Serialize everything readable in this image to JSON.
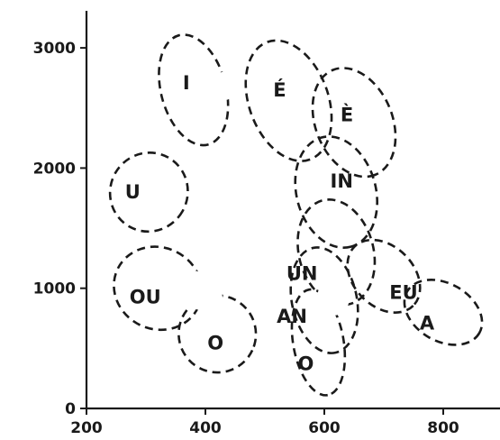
{
  "chart_data": {
    "type": "scatter",
    "title": "",
    "xlabel": "",
    "ylabel": "",
    "xlim": [
      200,
      850
    ],
    "ylim": [
      0,
      3100
    ],
    "x_ticks": [
      {
        "value": 200,
        "label": "200"
      },
      {
        "value": 400,
        "label": "400"
      },
      {
        "value": 600,
        "label": "600"
      },
      {
        "value": 800,
        "label": "800"
      }
    ],
    "y_ticks": [
      {
        "value": 0,
        "label": "0"
      },
      {
        "value": 1000,
        "label": "1000"
      },
      {
        "value": 2000,
        "label": "2000"
      },
      {
        "value": 3000,
        "label": "3000"
      }
    ],
    "vowel_regions": [
      {
        "label": "I",
        "cx": 380,
        "cy": 2650,
        "rx": 95,
        "ry": 270,
        "angle": 75
      },
      {
        "label": "É",
        "cx": 540,
        "cy": 2560,
        "rx": 105,
        "ry": 330,
        "angle": 70
      },
      {
        "label": "È",
        "cx": 650,
        "cy": 2380,
        "rx": 95,
        "ry": 320,
        "angle": 68
      },
      {
        "label": "U",
        "cx": 305,
        "cy": 1800,
        "rx": 65,
        "ry": 330,
        "angle": 30
      },
      {
        "label": "IN",
        "cx": 620,
        "cy": 1800,
        "rx": 95,
        "ry": 330,
        "angle": 75
      },
      {
        "label": "UN",
        "cx": 620,
        "cy": 1300,
        "rx": 90,
        "ry": 310,
        "angle": 75
      },
      {
        "label": "EU",
        "cx": 700,
        "cy": 1100,
        "rx": 70,
        "ry": 250,
        "angle": 45
      },
      {
        "label": "OU",
        "cx": 320,
        "cy": 1000,
        "rx": 75,
        "ry": 340,
        "angle": 25
      },
      {
        "label": "O",
        "cx": 420,
        "cy": 620,
        "rx": 65,
        "ry": 320,
        "angle": 25
      },
      {
        "label": "AN",
        "cx": 600,
        "cy": 900,
        "rx": 90,
        "ry": 270,
        "angle": 78
      },
      {
        "label": "A",
        "cx": 800,
        "cy": 800,
        "rx": 70,
        "ry": 240,
        "angle": 30
      },
      {
        "label": "O",
        "cx": 590,
        "cy": 550,
        "rx": 90,
        "ry": 210,
        "angle": 80
      }
    ],
    "grid": false,
    "legend": "none"
  }
}
